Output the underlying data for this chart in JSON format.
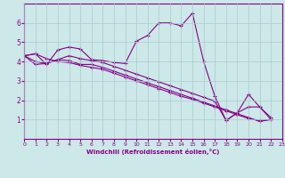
{
  "xlabel": "Windchill (Refroidissement éolien,°C)",
  "bg_color": "#cce8e8",
  "line_color": "#880088",
  "grid_color": "#aacccc",
  "xlim": [
    0,
    23
  ],
  "ylim": [
    0,
    7
  ],
  "xticks": [
    0,
    1,
    2,
    3,
    4,
    5,
    6,
    7,
    8,
    9,
    10,
    11,
    12,
    13,
    14,
    15,
    16,
    17,
    18,
    19,
    20,
    21,
    22,
    23
  ],
  "yticks": [
    1,
    2,
    3,
    4,
    5,
    6
  ],
  "series": [
    [
      4.3,
      4.4,
      3.85,
      4.6,
      4.75,
      4.65,
      4.1,
      4.05,
      3.95,
      3.9,
      5.05,
      5.35,
      6.0,
      6.0,
      5.85,
      6.5,
      4.0,
      2.2,
      0.95,
      1.35,
      2.3,
      1.65,
      1.1
    ],
    [
      4.3,
      3.85,
      3.9,
      4.1,
      4.05,
      3.85,
      3.85,
      3.7,
      3.5,
      3.3,
      3.1,
      2.9,
      2.7,
      2.5,
      2.3,
      2.1,
      1.9,
      1.7,
      1.5,
      1.3,
      1.1,
      0.9,
      1.0
    ],
    [
      4.3,
      4.0,
      3.9,
      4.1,
      4.3,
      4.15,
      4.05,
      3.95,
      3.75,
      3.55,
      3.35,
      3.15,
      2.95,
      2.75,
      2.55,
      2.35,
      2.15,
      1.95,
      0.95,
      1.35,
      1.65,
      1.65,
      1.0
    ],
    [
      4.3,
      4.4,
      4.15,
      4.0,
      3.95,
      3.8,
      3.7,
      3.6,
      3.4,
      3.2,
      3.0,
      2.8,
      2.6,
      2.4,
      2.2,
      2.05,
      1.85,
      1.65,
      1.45,
      1.25,
      1.05,
      0.95,
      1.0
    ]
  ]
}
